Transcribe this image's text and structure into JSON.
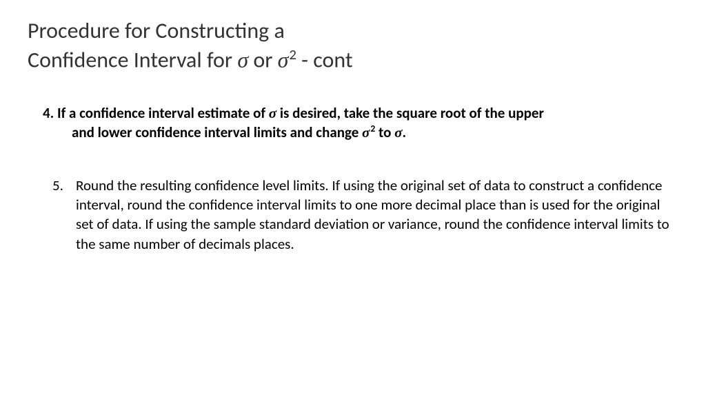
{
  "title": {
    "line1": "Procedure for Constructing a",
    "line2_a": "Confidence Interval for ",
    "line2_b": " or ",
    "line2_c": " - cont"
  },
  "item4": {
    "lead": "4. If a confidence interval estimate of ",
    "after_sigma1": " is desired, take the square root of the upper",
    "line2_a": "and lower confidence interval limits and change ",
    "line2_b": " to ",
    "line2_c": "."
  },
  "item5": {
    "num": "5.",
    "body": "Round the resulting confidence level limits. If using the original set of data to construct a confidence interval, round the confidence interval limits to one more decimal place than is used for the original set of data.  If using the sample standard deviation or variance, round the confidence interval limits to the same number of decimals places."
  },
  "glyph": {
    "sigma": "σ",
    "two": "2"
  }
}
